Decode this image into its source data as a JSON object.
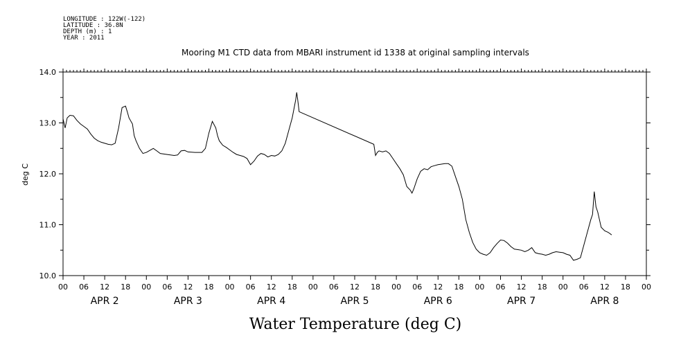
{
  "meta": {
    "longitude": "LONGITUDE : 122W(-122)",
    "latitude": "LATITUDE : 36.8N",
    "depth": "DEPTH (m) : 1",
    "year": "YEAR : 2011"
  },
  "chart_data": {
    "type": "line",
    "title": "Mooring M1 CTD data from MBARI instrument id 1338 at original sampling intervals",
    "xlabel": "Water Temperature (deg C)",
    "ylabel": "deg C",
    "ylim": [
      10.0,
      14.0
    ],
    "yticks": [
      "10.0",
      "11.0",
      "12.0",
      "13.0",
      "14.0"
    ],
    "xlim_hours": [
      0,
      168
    ],
    "hour_tick_labels": [
      "00",
      "06",
      "12",
      "18"
    ],
    "day_labels": [
      "APR  2",
      "APR  3",
      "APR  4",
      "APR  5",
      "APR  6",
      "APR  7",
      "APR  8"
    ],
    "grid": false,
    "series": [
      {
        "points": [
          [
            0,
            13.08
          ],
          [
            0.6,
            12.9
          ],
          [
            1.2,
            13.1
          ],
          [
            2,
            13.15
          ],
          [
            3,
            13.14
          ],
          [
            4,
            13.05
          ],
          [
            5,
            12.98
          ],
          [
            6,
            12.93
          ],
          [
            7,
            12.88
          ],
          [
            8,
            12.78
          ],
          [
            9,
            12.7
          ],
          [
            10,
            12.65
          ],
          [
            11,
            12.62
          ],
          [
            12,
            12.6
          ],
          [
            13,
            12.58
          ],
          [
            14,
            12.57
          ],
          [
            15,
            12.6
          ],
          [
            16,
            12.9
          ],
          [
            17,
            13.3
          ],
          [
            18,
            13.33
          ],
          [
            18.5,
            13.22
          ],
          [
            19,
            13.1
          ],
          [
            20,
            12.98
          ],
          [
            20.5,
            12.75
          ],
          [
            21,
            12.65
          ],
          [
            22,
            12.5
          ],
          [
            23,
            12.4
          ],
          [
            24,
            12.42
          ],
          [
            25,
            12.46
          ],
          [
            26,
            12.5
          ],
          [
            27,
            12.45
          ],
          [
            28,
            12.4
          ],
          [
            30,
            12.38
          ],
          [
            32,
            12.36
          ],
          [
            33,
            12.37
          ],
          [
            34,
            12.45
          ],
          [
            35,
            12.46
          ],
          [
            36,
            12.43
          ],
          [
            38,
            12.42
          ],
          [
            40,
            12.42
          ],
          [
            41,
            12.5
          ],
          [
            42,
            12.8
          ],
          [
            43,
            13.03
          ],
          [
            44,
            12.9
          ],
          [
            44.5,
            12.75
          ],
          [
            45,
            12.65
          ],
          [
            46,
            12.56
          ],
          [
            47,
            12.52
          ],
          [
            48,
            12.47
          ],
          [
            49,
            12.42
          ],
          [
            50,
            12.38
          ],
          [
            51,
            12.36
          ],
          [
            52,
            12.34
          ],
          [
            53,
            12.3
          ],
          [
            54,
            12.18
          ],
          [
            55,
            12.25
          ],
          [
            56,
            12.35
          ],
          [
            57,
            12.4
          ],
          [
            58,
            12.38
          ],
          [
            59,
            12.33
          ],
          [
            60,
            12.36
          ],
          [
            61,
            12.35
          ],
          [
            62,
            12.38
          ],
          [
            63,
            12.45
          ],
          [
            64,
            12.6
          ],
          [
            65,
            12.85
          ],
          [
            66,
            13.1
          ],
          [
            67,
            13.45
          ],
          [
            67.3,
            13.6
          ],
          [
            67.6,
            13.45
          ],
          [
            68,
            13.22
          ],
          [
            89.5,
            12.58
          ],
          [
            90,
            12.36
          ],
          [
            90.5,
            12.42
          ],
          [
            91,
            12.45
          ],
          [
            92,
            12.43
          ],
          [
            93,
            12.45
          ],
          [
            94,
            12.4
          ],
          [
            95,
            12.3
          ],
          [
            96,
            12.2
          ],
          [
            97,
            12.1
          ],
          [
            98,
            11.98
          ],
          [
            99,
            11.75
          ],
          [
            100,
            11.68
          ],
          [
            100.5,
            11.62
          ],
          [
            101,
            11.7
          ],
          [
            102,
            11.9
          ],
          [
            103,
            12.05
          ],
          [
            104,
            12.1
          ],
          [
            105,
            12.08
          ],
          [
            106,
            12.14
          ],
          [
            107,
            12.16
          ],
          [
            108,
            12.18
          ],
          [
            110,
            12.2
          ],
          [
            111,
            12.2
          ],
          [
            112,
            12.15
          ],
          [
            113,
            11.95
          ],
          [
            114,
            11.75
          ],
          [
            115,
            11.5
          ],
          [
            116,
            11.1
          ],
          [
            117,
            10.85
          ],
          [
            118,
            10.65
          ],
          [
            119,
            10.52
          ],
          [
            120,
            10.45
          ],
          [
            121,
            10.42
          ],
          [
            122,
            10.4
          ],
          [
            123,
            10.45
          ],
          [
            124,
            10.55
          ],
          [
            125,
            10.63
          ],
          [
            126,
            10.7
          ],
          [
            127,
            10.69
          ],
          [
            128,
            10.64
          ],
          [
            129,
            10.57
          ],
          [
            130,
            10.52
          ],
          [
            131,
            10.51
          ],
          [
            132,
            10.5
          ],
          [
            133,
            10.47
          ],
          [
            134,
            10.5
          ],
          [
            135,
            10.55
          ],
          [
            136,
            10.45
          ],
          [
            137,
            10.43
          ],
          [
            138,
            10.42
          ],
          [
            139,
            10.4
          ],
          [
            140,
            10.42
          ],
          [
            141,
            10.45
          ],
          [
            142,
            10.47
          ],
          [
            143,
            10.46
          ],
          [
            144,
            10.45
          ],
          [
            145,
            10.42
          ],
          [
            146,
            10.4
          ],
          [
            147,
            10.3
          ],
          [
            148,
            10.32
          ],
          [
            149,
            10.35
          ],
          [
            150,
            10.6
          ],
          [
            151,
            10.85
          ],
          [
            152,
            11.1
          ],
          [
            152.5,
            11.2
          ],
          [
            153,
            11.65
          ],
          [
            153.5,
            11.35
          ],
          [
            154,
            11.25
          ],
          [
            154.5,
            11.1
          ],
          [
            155,
            10.95
          ],
          [
            156,
            10.88
          ],
          [
            157,
            10.85
          ],
          [
            158,
            10.8
          ]
        ]
      }
    ]
  }
}
